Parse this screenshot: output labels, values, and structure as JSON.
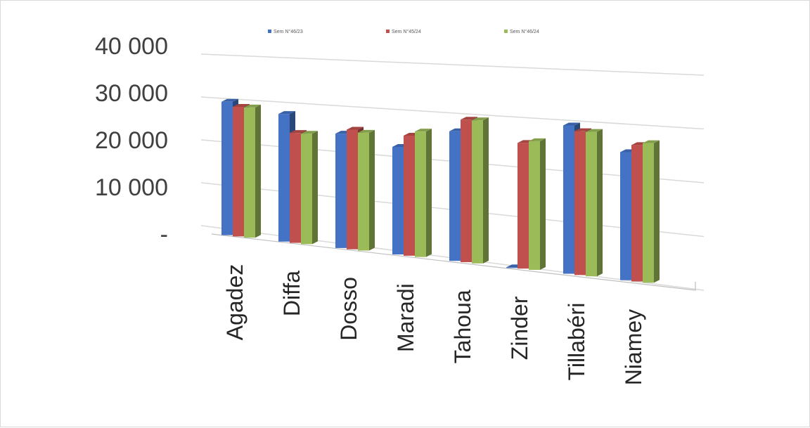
{
  "chart_data": {
    "type": "bar",
    "title": "",
    "xlabel": "",
    "ylabel": "",
    "ylim": [
      0,
      40000
    ],
    "yticks": [
      {
        "value": 0,
        "label": "-"
      },
      {
        "value": 10000,
        "label": "10 000"
      },
      {
        "value": 20000,
        "label": "20 000"
      },
      {
        "value": 30000,
        "label": "30 000"
      },
      {
        "value": 40000,
        "label": "40 000"
      }
    ],
    "categories": [
      "Agadez",
      "Diffa",
      "Dosso",
      "Maradi",
      "Tahoua",
      "Zinder",
      "Tillabéri",
      "Niamey"
    ],
    "series": [
      {
        "name": "Sem N°46/23",
        "color": "#4472c4",
        "values": [
          30000,
          28000,
          24500,
          22500,
          26500,
          0,
          29000,
          24500
        ]
      },
      {
        "name": "Sem N°45/24",
        "color": "#c0504d",
        "values": [
          29000,
          24000,
          25500,
          25000,
          29000,
          25000,
          28000,
          26000
        ]
      },
      {
        "name": "Sem N°46/24",
        "color": "#9bbb59",
        "values": [
          29000,
          24000,
          25000,
          26000,
          29000,
          25500,
          28000,
          26500
        ]
      }
    ],
    "legend_position": "top",
    "grid": true,
    "style": "3d-clustered-column"
  }
}
